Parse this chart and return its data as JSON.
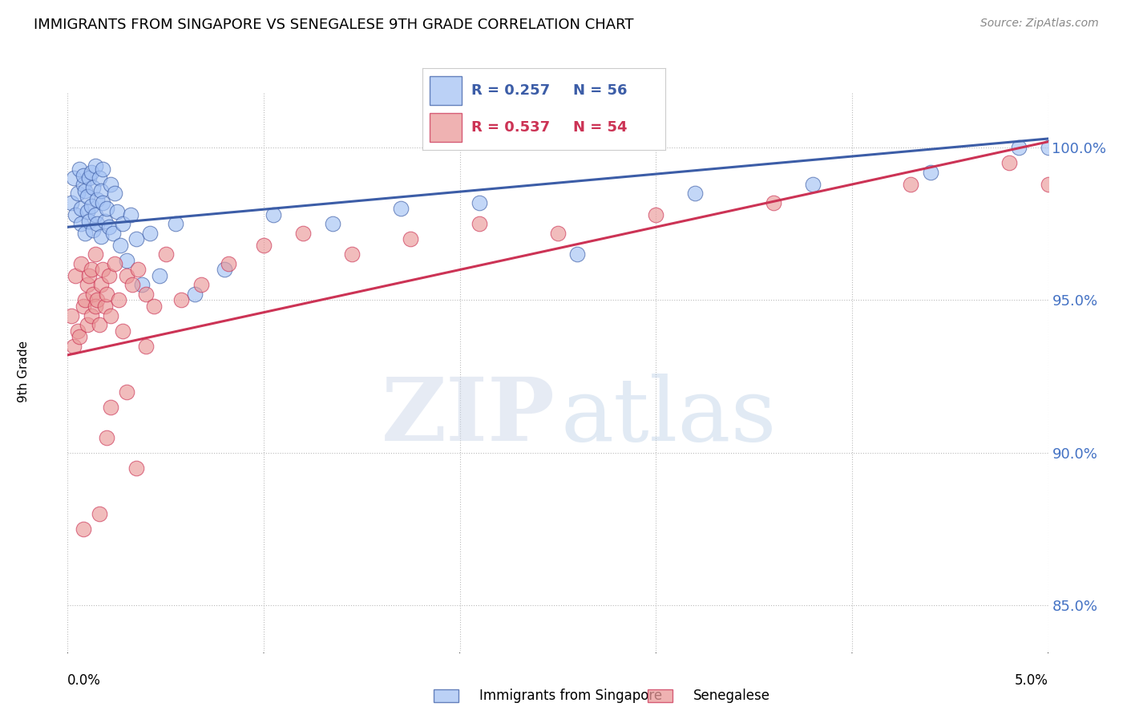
{
  "title": "IMMIGRANTS FROM SINGAPORE VS SENEGALESE 9TH GRADE CORRELATION CHART",
  "source": "Source: ZipAtlas.com",
  "ylabel": "9th Grade",
  "y_ticks": [
    85.0,
    90.0,
    95.0,
    100.0
  ],
  "y_tick_labels": [
    "85.0%",
    "90.0%",
    "95.0%",
    "100.0%"
  ],
  "xmin": 0.0,
  "xmax": 5.0,
  "ymin": 83.5,
  "ymax": 101.8,
  "legend_blue_r": "0.257",
  "legend_blue_n": "56",
  "legend_pink_r": "0.537",
  "legend_pink_n": "54",
  "legend_label_blue": "Immigrants from Singapore",
  "legend_label_pink": "Senegalese",
  "blue_color": "#a4c2f4",
  "pink_color": "#ea9999",
  "blue_line_color": "#3c5da7",
  "pink_line_color": "#cc3355",
  "blue_scatter_x": [
    0.02,
    0.03,
    0.04,
    0.05,
    0.06,
    0.07,
    0.07,
    0.08,
    0.08,
    0.09,
    0.09,
    0.1,
    0.1,
    0.11,
    0.11,
    0.12,
    0.12,
    0.13,
    0.13,
    0.14,
    0.14,
    0.15,
    0.15,
    0.16,
    0.17,
    0.17,
    0.18,
    0.18,
    0.19,
    0.2,
    0.21,
    0.22,
    0.23,
    0.24,
    0.25,
    0.27,
    0.28,
    0.3,
    0.32,
    0.35,
    0.38,
    0.42,
    0.47,
    0.55,
    0.65,
    0.8,
    1.05,
    1.35,
    1.7,
    2.1,
    2.6,
    3.2,
    3.8,
    4.4,
    4.85,
    5.0
  ],
  "blue_scatter_y": [
    98.2,
    99.0,
    97.8,
    98.5,
    99.3,
    98.0,
    97.5,
    98.8,
    99.1,
    97.2,
    98.6,
    97.9,
    98.4,
    99.0,
    97.6,
    98.1,
    99.2,
    97.3,
    98.7,
    97.8,
    99.4,
    98.3,
    97.5,
    99.0,
    98.6,
    97.1,
    98.2,
    99.3,
    97.6,
    98.0,
    97.4,
    98.8,
    97.2,
    98.5,
    97.9,
    96.8,
    97.5,
    96.3,
    97.8,
    97.0,
    95.5,
    97.2,
    95.8,
    97.5,
    95.2,
    96.0,
    97.8,
    97.5,
    98.0,
    98.2,
    96.5,
    98.5,
    98.8,
    99.2,
    100.0,
    100.0
  ],
  "pink_scatter_x": [
    0.02,
    0.03,
    0.04,
    0.05,
    0.06,
    0.07,
    0.08,
    0.09,
    0.1,
    0.1,
    0.11,
    0.12,
    0.12,
    0.13,
    0.14,
    0.14,
    0.15,
    0.16,
    0.17,
    0.18,
    0.19,
    0.2,
    0.21,
    0.22,
    0.24,
    0.26,
    0.28,
    0.3,
    0.33,
    0.36,
    0.4,
    0.44,
    0.5,
    0.58,
    0.68,
    0.82,
    1.0,
    1.2,
    1.45,
    1.75,
    2.1,
    2.5,
    3.0,
    3.6,
    4.3,
    4.8,
    5.0,
    0.08,
    0.16,
    0.22,
    0.3,
    0.4,
    0.2,
    0.35
  ],
  "pink_scatter_y": [
    94.5,
    93.5,
    95.8,
    94.0,
    93.8,
    96.2,
    94.8,
    95.0,
    95.5,
    94.2,
    95.8,
    94.5,
    96.0,
    95.2,
    94.8,
    96.5,
    95.0,
    94.2,
    95.5,
    96.0,
    94.8,
    95.2,
    95.8,
    94.5,
    96.2,
    95.0,
    94.0,
    95.8,
    95.5,
    96.0,
    95.2,
    94.8,
    96.5,
    95.0,
    95.5,
    96.2,
    96.8,
    97.2,
    96.5,
    97.0,
    97.5,
    97.2,
    97.8,
    98.2,
    98.8,
    99.5,
    98.8,
    87.5,
    88.0,
    91.5,
    92.0,
    93.5,
    90.5,
    89.5
  ]
}
